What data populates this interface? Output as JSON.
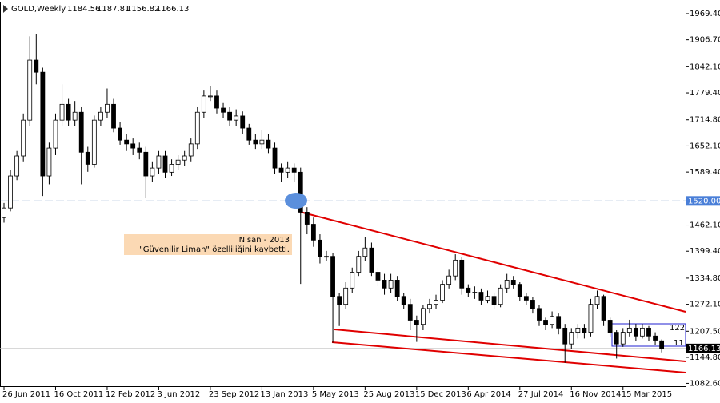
{
  "chart_data": {
    "type": "candlestick",
    "symbol": "GOLD,Weekly",
    "categories": [
      "26 Jun 2011",
      null,
      null,
      null,
      null,
      null,
      null,
      null,
      "16 Oct 2011",
      null,
      null,
      null,
      null,
      null,
      null,
      null,
      "12 Feb 2012",
      null,
      null,
      null,
      null,
      null,
      null,
      null,
      "3 Jun 2012",
      null,
      null,
      null,
      null,
      null,
      null,
      null,
      "23 Sep 2012",
      null,
      null,
      null,
      null,
      null,
      null,
      null,
      "13 Jan 2013",
      null,
      null,
      null,
      null,
      null,
      null,
      null,
      "5 May 2013",
      null,
      null,
      null,
      null,
      null,
      null,
      null,
      "25 Aug 2013",
      null,
      null,
      null,
      null,
      null,
      null,
      null,
      "15 Dec 2013",
      null,
      null,
      null,
      null,
      null,
      null,
      null,
      "6 Apr 2014",
      null,
      null,
      null,
      null,
      null,
      null,
      null,
      "27 Jul 2014",
      null,
      null,
      null,
      null,
      null,
      null,
      null,
      "16 Nov 2014",
      null,
      null,
      null,
      null,
      null,
      null,
      null,
      "15 Mar 2015",
      null,
      null,
      null,
      null,
      null,
      null
    ],
    "open": [
      1480,
      1503,
      1580,
      1628,
      1714,
      1858,
      1829,
      1580,
      1647,
      1714,
      1752,
      1714,
      1733,
      1637,
      1608,
      1714,
      1733,
      1752,
      1695,
      1666,
      1657,
      1647,
      1637,
      1580,
      1599,
      1628,
      1589,
      1608,
      1618,
      1628,
      1657,
      1733,
      1772,
      1772,
      1743,
      1733,
      1714,
      1724,
      1695,
      1666,
      1657,
      1666,
      1647,
      1599,
      1589,
      1599,
      1589,
      1493,
      1464,
      1426,
      1387,
      1387,
      1291,
      1272,
      1311,
      1349,
      1387,
      1407,
      1349,
      1330,
      1311,
      1330,
      1291,
      1272,
      1234,
      1224,
      1262,
      1272,
      1282,
      1320,
      1340,
      1378,
      1311,
      1301,
      1301,
      1282,
      1291,
      1272,
      1311,
      1330,
      1320,
      1291,
      1282,
      1262,
      1234,
      1224,
      1243,
      1215,
      1177,
      1205,
      1215,
      1205,
      1272,
      1291,
      1234,
      1205,
      1177,
      1205,
      1215,
      1196,
      1215,
      1196,
      1184.56
    ],
    "high": [
      1515,
      1595,
      1640,
      1730,
      1915,
      1921,
      1840,
      1660,
      1730,
      1800,
      1765,
      1760,
      1745,
      1650,
      1725,
      1745,
      1790,
      1765,
      1710,
      1680,
      1670,
      1660,
      1650,
      1615,
      1640,
      1640,
      1620,
      1630,
      1640,
      1670,
      1745,
      1785,
      1795,
      1785,
      1755,
      1745,
      1740,
      1735,
      1705,
      1680,
      1690,
      1680,
      1660,
      1610,
      1615,
      1610,
      1600,
      1505,
      1480,
      1440,
      1400,
      1395,
      1300,
      1325,
      1360,
      1400,
      1433,
      1420,
      1360,
      1345,
      1345,
      1340,
      1300,
      1285,
      1245,
      1270,
      1285,
      1295,
      1330,
      1355,
      1392,
      1385,
      1320,
      1315,
      1310,
      1305,
      1300,
      1320,
      1345,
      1340,
      1325,
      1300,
      1290,
      1270,
      1240,
      1255,
      1250,
      1225,
      1215,
      1225,
      1225,
      1285,
      1305,
      1295,
      1240,
      1210,
      1215,
      1235,
      1225,
      1225,
      1220,
      1205,
      1187.81
    ],
    "low": [
      1468,
      1495,
      1570,
      1615,
      1700,
      1800,
      1532,
      1560,
      1630,
      1700,
      1700,
      1700,
      1560,
      1590,
      1600,
      1700,
      1720,
      1685,
      1655,
      1640,
      1630,
      1620,
      1527,
      1565,
      1585,
      1575,
      1580,
      1595,
      1605,
      1615,
      1645,
      1720,
      1760,
      1730,
      1720,
      1700,
      1700,
      1680,
      1655,
      1645,
      1645,
      1635,
      1585,
      1565,
      1575,
      1565,
      1321,
      1440,
      1410,
      1370,
      1375,
      1180,
      1220,
      1260,
      1300,
      1340,
      1375,
      1340,
      1315,
      1295,
      1300,
      1280,
      1260,
      1210,
      1182,
      1210,
      1250,
      1260,
      1275,
      1310,
      1330,
      1295,
      1290,
      1285,
      1270,
      1275,
      1260,
      1265,
      1300,
      1310,
      1280,
      1270,
      1250,
      1220,
      1210,
      1215,
      1200,
      1132,
      1165,
      1190,
      1190,
      1195,
      1260,
      1220,
      1195,
      1142,
      1170,
      1195,
      1185,
      1190,
      1185,
      1175,
      1156.82
    ],
    "close": [
      1503,
      1580,
      1628,
      1714,
      1858,
      1829,
      1580,
      1647,
      1714,
      1752,
      1714,
      1733,
      1637,
      1608,
      1714,
      1733,
      1752,
      1695,
      1666,
      1657,
      1647,
      1637,
      1580,
      1599,
      1628,
      1589,
      1608,
      1618,
      1628,
      1657,
      1733,
      1772,
      1772,
      1743,
      1733,
      1714,
      1724,
      1695,
      1666,
      1657,
      1666,
      1647,
      1599,
      1589,
      1599,
      1589,
      1493,
      1464,
      1426,
      1387,
      1387,
      1291,
      1272,
      1311,
      1349,
      1387,
      1407,
      1349,
      1330,
      1311,
      1330,
      1291,
      1272,
      1234,
      1224,
      1262,
      1272,
      1282,
      1320,
      1340,
      1378,
      1311,
      1301,
      1301,
      1282,
      1291,
      1272,
      1311,
      1330,
      1320,
      1291,
      1282,
      1262,
      1234,
      1224,
      1243,
      1215,
      1177,
      1205,
      1215,
      1205,
      1272,
      1291,
      1234,
      1205,
      1177,
      1205,
      1215,
      1196,
      1215,
      1196,
      1186,
      1166.13
    ],
    "ylim": [
      1070,
      2000
    ],
    "yticks": [
      {
        "value": 1969.4,
        "label": "1969.40"
      },
      {
        "value": 1906.7,
        "label": "1906.70"
      },
      {
        "value": 1842.1,
        "label": "1842.10"
      },
      {
        "value": 1779.4,
        "label": "1779.40"
      },
      {
        "value": 1714.8,
        "label": "1714.80"
      },
      {
        "value": 1652.1,
        "label": "1652.10"
      },
      {
        "value": 1589.4,
        "label": "1589.40"
      },
      {
        "value": 1462.1,
        "label": "1462.10"
      },
      {
        "value": 1399.4,
        "label": "1399.40"
      },
      {
        "value": 1334.8,
        "label": "1334.80"
      },
      {
        "value": 1272.1,
        "label": "1272.10"
      },
      {
        "value": 1207.5,
        "label": "1207.50"
      },
      {
        "value": 1144.8,
        "label": "1144.80"
      },
      {
        "value": 1082.6,
        "label": "1082.60"
      }
    ],
    "hline": {
      "value": 1520,
      "label": "1520.00"
    },
    "annotation": {
      "line1": "Nisan - 2013",
      "line2": "\"Güvenilir Liman\" özelliliğini kaybetti."
    },
    "range_labels": [
      "122",
      "11"
    ]
  }
}
